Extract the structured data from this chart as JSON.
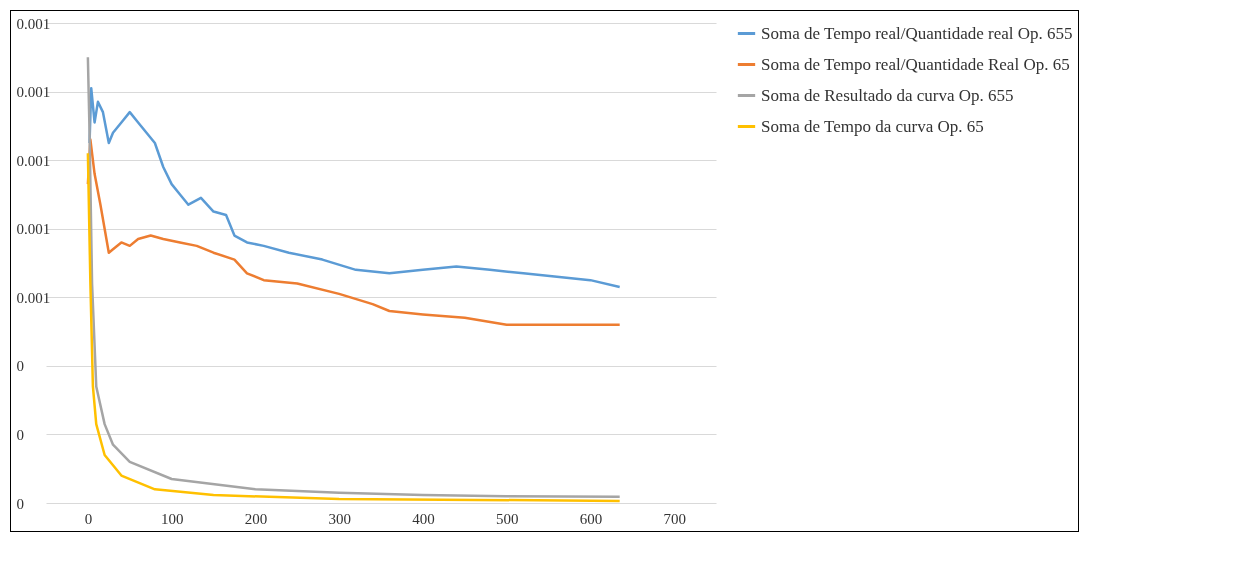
{
  "chart_data": {
    "type": "line",
    "xlim": [
      -50,
      750
    ],
    "xticks": [
      0,
      100,
      200,
      300,
      400,
      500,
      600,
      700
    ],
    "ylim": [
      0,
      0.0014
    ],
    "yticks": [
      0,
      {
        "value": 0.0002,
        "label": "0"
      },
      {
        "value": 0.0004,
        "label": "0"
      },
      {
        "value": 0.0006,
        "label": "0.001"
      },
      {
        "value": 0.0008,
        "label": "0.001"
      },
      {
        "value": 0.001,
        "label": "0.001"
      },
      {
        "value": 0.0012,
        "label": "0.001"
      },
      {
        "value": 0.0014,
        "label": "0.001"
      }
    ],
    "grid": "y",
    "legend": "right",
    "marker": "none",
    "line_style": "solid",
    "series": [
      {
        "name": "Soma de Tempo real/Quantidade real Op. 655",
        "color": "#5b9bd5",
        "x": [
          2,
          4,
          8,
          12,
          18,
          25,
          30,
          40,
          50,
          60,
          70,
          80,
          90,
          100,
          110,
          120,
          135,
          150,
          165,
          175,
          190,
          210,
          240,
          280,
          320,
          360,
          400,
          440,
          480,
          520,
          560,
          600,
          635
        ],
        "values": [
          0.00105,
          0.00121,
          0.00111,
          0.00117,
          0.00114,
          0.00105,
          0.00108,
          0.00111,
          0.00114,
          0.00111,
          0.00108,
          0.00105,
          0.00098,
          0.00093,
          0.0009,
          0.00087,
          0.00089,
          0.00085,
          0.00084,
          0.00078,
          0.00076,
          0.00075,
          0.00073,
          0.00071,
          0.00068,
          0.00067,
          0.00068,
          0.00069,
          0.00068,
          0.00067,
          0.00066,
          0.00065,
          0.00063
        ]
      },
      {
        "name": "Soma de Tempo real/Quantidade Real Op. 65",
        "color": "#ed7d31",
        "x": [
          0,
          3,
          8,
          15,
          25,
          30,
          40,
          50,
          60,
          75,
          90,
          110,
          130,
          150,
          175,
          190,
          210,
          250,
          300,
          340,
          360,
          400,
          450,
          500,
          550,
          600,
          635
        ],
        "values": [
          0.00093,
          0.00106,
          0.00096,
          0.00087,
          0.00073,
          0.00074,
          0.00076,
          0.00075,
          0.00077,
          0.00078,
          0.00077,
          0.00076,
          0.00075,
          0.00073,
          0.00071,
          0.00067,
          0.00065,
          0.00064,
          0.00061,
          0.00058,
          0.00056,
          0.00055,
          0.00054,
          0.00052,
          0.00052,
          0.00052,
          0.00052
        ]
      },
      {
        "name": "Soma de Resultado da curva Op. 655",
        "color": "#a5a5a5",
        "x": [
          0,
          2,
          5,
          10,
          20,
          30,
          50,
          100,
          200,
          300,
          400,
          500,
          635
        ],
        "values": [
          0.0013,
          0.00108,
          0.00064,
          0.00034,
          0.00023,
          0.00017,
          0.00012,
          7e-05,
          4e-05,
          3e-05,
          2.3e-05,
          2e-05,
          1.8e-05
        ]
      },
      {
        "name": "Soma de Tempo da curva Op. 65",
        "color": "#ffc000",
        "x": [
          0,
          3,
          6,
          10,
          20,
          40,
          80,
          150,
          300,
          635
        ],
        "values": [
          0.00102,
          0.00064,
          0.00034,
          0.00023,
          0.00014,
          8e-05,
          4e-05,
          2.3e-05,
          1.2e-05,
          6e-06
        ]
      }
    ]
  }
}
